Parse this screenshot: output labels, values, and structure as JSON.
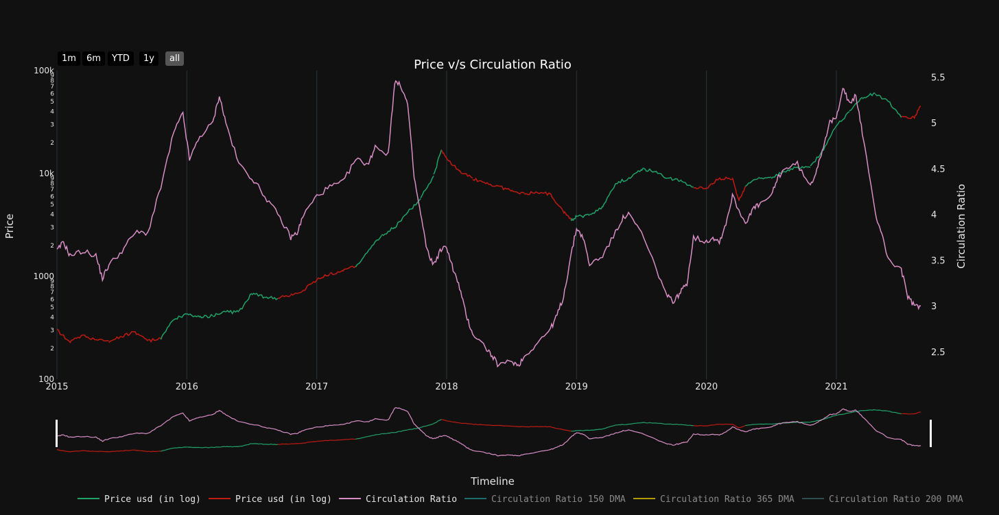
{
  "range_selector": {
    "buttons": [
      "1m",
      "6m",
      "YTD",
      "1y",
      "all"
    ],
    "active": "all"
  },
  "colors": {
    "background": "#111111",
    "price_up": "#1fa36a",
    "price_down": "#c21a10",
    "ratio": "#d98fc6",
    "ma150": "#1d6f6d",
    "ma365": "#b39b00",
    "ma200": "#2f4f4f",
    "grid": "#2c3440"
  },
  "chart_data": {
    "type": "line",
    "title": "Price v/s Circulation Ratio",
    "xlabel": "Timeline",
    "ylabel": "Price",
    "y2label": "Circulation Ratio",
    "xlim": [
      2015.0,
      2021.65
    ],
    "ylim": [
      100,
      100000
    ],
    "yscale": "log",
    "y2lim": [
      2.2,
      5.57
    ],
    "x_ticks": [
      "2015",
      "2016",
      "2017",
      "2018",
      "2019",
      "2020",
      "2021"
    ],
    "y_ticks_major": [
      "100k",
      "10k",
      "1000",
      "100"
    ],
    "y_ticks_minor": [
      "2",
      "3",
      "4",
      "5",
      "6",
      "7",
      "8",
      "9"
    ],
    "y2_ticks": [
      "2.5",
      "3",
      "3.5",
      "4",
      "4.5",
      "5",
      "5.5"
    ],
    "grid": "vertical",
    "legend_position": "bottom",
    "series": [
      {
        "name": "Price usd (in log)",
        "axis": "y",
        "color_rule": "green when circulation ratio is above its 200-day average, red otherwise",
        "x": [
          2015.0,
          2015.1,
          2015.2,
          2015.3,
          2015.4,
          2015.5,
          2015.6,
          2015.7,
          2015.8,
          2015.9,
          2016.0,
          2016.1,
          2016.2,
          2016.3,
          2016.4,
          2016.5,
          2016.6,
          2016.7,
          2016.8,
          2016.9,
          2017.0,
          2017.1,
          2017.2,
          2017.3,
          2017.4,
          2017.5,
          2017.6,
          2017.7,
          2017.8,
          2017.9,
          2017.96,
          2018.0,
          2018.1,
          2018.2,
          2018.3,
          2018.4,
          2018.5,
          2018.6,
          2018.7,
          2018.8,
          2018.9,
          2018.96,
          2019.0,
          2019.1,
          2019.2,
          2019.3,
          2019.4,
          2019.5,
          2019.6,
          2019.7,
          2019.8,
          2019.9,
          2020.0,
          2020.1,
          2020.2,
          2020.25,
          2020.3,
          2020.4,
          2020.5,
          2020.6,
          2020.7,
          2020.8,
          2020.9,
          2021.0,
          2021.1,
          2021.2,
          2021.3,
          2021.4,
          2021.5,
          2021.6,
          2021.65
        ],
        "values": [
          300,
          230,
          270,
          240,
          235,
          260,
          290,
          235,
          250,
          380,
          430,
          400,
          415,
          450,
          450,
          680,
          630,
          610,
          660,
          740,
          920,
          1050,
          1150,
          1250,
          1800,
          2500,
          3000,
          4200,
          5700,
          9500,
          17000,
          14000,
          10500,
          9000,
          8000,
          7500,
          6700,
          6400,
          6500,
          6300,
          4200,
          3500,
          3800,
          3900,
          4800,
          8000,
          9000,
          11000,
          10500,
          9000,
          8500,
          7400,
          7200,
          9000,
          8800,
          5500,
          7500,
          9000,
          9200,
          10500,
          11500,
          11500,
          17000,
          29000,
          40000,
          55000,
          60000,
          50000,
          35000,
          35000,
          45000
        ],
        "colors": [
          "down",
          "down",
          "down",
          "down",
          "down",
          "down",
          "down",
          "down",
          "up",
          "up",
          "up",
          "up",
          "up",
          "up",
          "up",
          "up",
          "up",
          "down",
          "down",
          "down",
          "down",
          "down",
          "down",
          "up",
          "up",
          "up",
          "up",
          "up",
          "up",
          "up",
          "down",
          "down",
          "down",
          "down",
          "down",
          "down",
          "down",
          "down",
          "down",
          "down",
          "down",
          "up",
          "up",
          "up",
          "up",
          "up",
          "up",
          "up",
          "up",
          "up",
          "up",
          "down",
          "down",
          "down",
          "down",
          "down",
          "up",
          "up",
          "up",
          "up",
          "up",
          "up",
          "up",
          "up",
          "up",
          "up",
          "up",
          "up",
          "down",
          "down",
          "down"
        ]
      },
      {
        "name": "Price usd (in log)",
        "axis": "y",
        "color_key": "price_down"
      },
      {
        "name": "Circulation Ratio",
        "axis": "y2",
        "x": [
          2015.0,
          2015.05,
          2015.1,
          2015.2,
          2015.3,
          2015.35,
          2015.4,
          2015.5,
          2015.6,
          2015.7,
          2015.8,
          2015.9,
          2015.97,
          2016.02,
          2016.1,
          2016.2,
          2016.25,
          2016.3,
          2016.4,
          2016.5,
          2016.6,
          2016.7,
          2016.8,
          2016.85,
          2016.9,
          2017.0,
          2017.1,
          2017.2,
          2017.3,
          2017.4,
          2017.45,
          2017.55,
          2017.6,
          2017.65,
          2017.7,
          2017.75,
          2017.8,
          2017.85,
          2017.9,
          2017.95,
          2018.0,
          2018.05,
          2018.1,
          2018.15,
          2018.2,
          2018.3,
          2018.35,
          2018.4,
          2018.5,
          2018.55,
          2018.6,
          2018.7,
          2018.8,
          2018.85,
          2018.9,
          2018.95,
          2019.0,
          2019.05,
          2019.1,
          2019.2,
          2019.3,
          2019.35,
          2019.4,
          2019.5,
          2019.6,
          2019.7,
          2019.75,
          2019.8,
          2019.85,
          2019.9,
          2020.0,
          2020.05,
          2020.1,
          2020.15,
          2020.2,
          2020.3,
          2020.35,
          2020.4,
          2020.5,
          2020.55,
          2020.6,
          2020.7,
          2020.8,
          2020.85,
          2020.9,
          2020.95,
          2021.0,
          2021.05,
          2021.1,
          2021.15,
          2021.2,
          2021.3,
          2021.35,
          2021.4,
          2021.5,
          2021.55,
          2021.6,
          2021.65
        ],
        "values": [
          3.6,
          3.7,
          3.55,
          3.6,
          3.55,
          3.3,
          3.45,
          3.6,
          3.8,
          3.8,
          4.3,
          4.9,
          5.1,
          4.6,
          4.85,
          5.0,
          5.3,
          5.0,
          4.55,
          4.4,
          4.2,
          4.0,
          3.75,
          3.8,
          4.0,
          4.2,
          4.3,
          4.35,
          4.6,
          4.55,
          4.75,
          4.65,
          5.45,
          5.4,
          5.2,
          4.4,
          4.0,
          3.6,
          3.45,
          3.6,
          3.65,
          3.4,
          3.2,
          2.9,
          2.7,
          2.55,
          2.45,
          2.35,
          2.4,
          2.35,
          2.45,
          2.6,
          2.75,
          2.9,
          3.1,
          3.5,
          3.85,
          3.75,
          3.45,
          3.55,
          3.8,
          3.95,
          4.0,
          3.8,
          3.45,
          3.1,
          3.05,
          3.15,
          3.25,
          3.75,
          3.7,
          3.75,
          3.7,
          3.9,
          4.2,
          3.9,
          4.05,
          4.1,
          4.2,
          4.4,
          4.5,
          4.55,
          4.3,
          4.5,
          4.75,
          5.0,
          5.05,
          5.4,
          5.2,
          5.3,
          4.9,
          4.0,
          3.8,
          3.5,
          3.4,
          3.1,
          3.0,
          3.0
        ]
      },
      {
        "name": "Circulation Ratio 150 DMA",
        "color_key": "ma150"
      },
      {
        "name": "Circulation Ratio 365 DMA",
        "color_key": "ma365"
      },
      {
        "name": "Circulation Ratio 200 DMA",
        "color_key": "ma200"
      }
    ]
  }
}
